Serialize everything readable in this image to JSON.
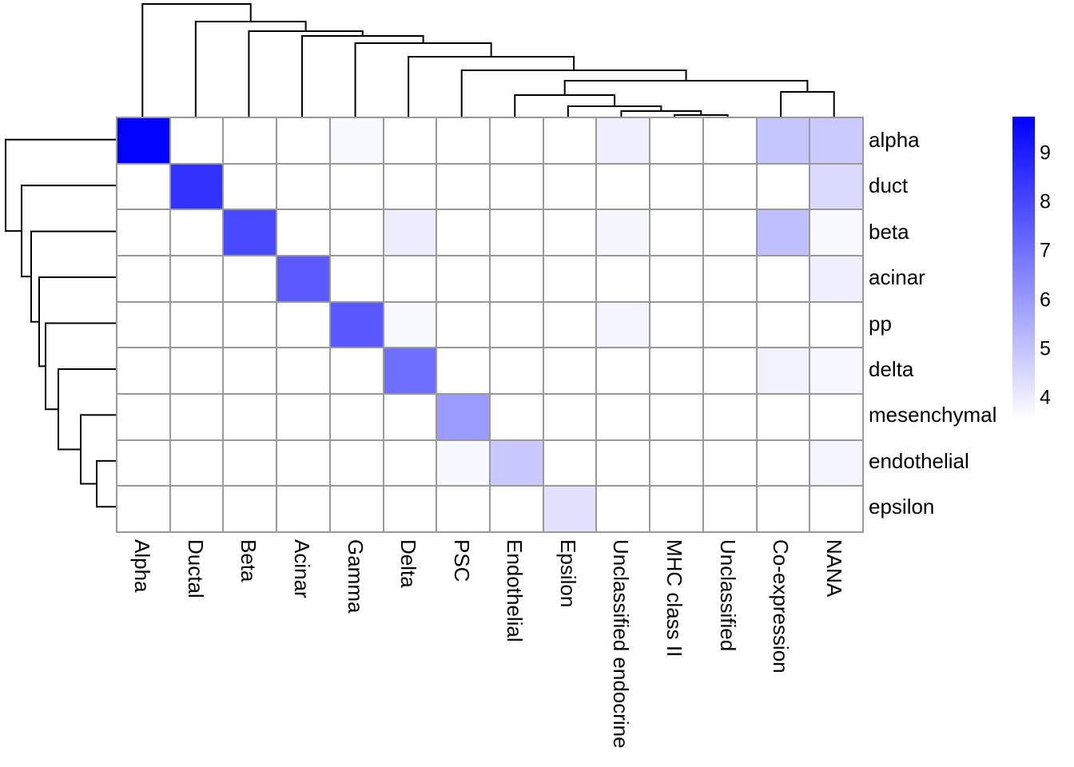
{
  "chart_data": {
    "type": "heatmap",
    "title": "",
    "rows": [
      "alpha",
      "duct",
      "beta",
      "acinar",
      "pp",
      "delta",
      "mesenchymal",
      "endothelial",
      "epsilon"
    ],
    "columns": [
      "Alpha",
      "Ductal",
      "Beta",
      "Acinar",
      "Gamma",
      "Delta",
      "PSC",
      "Endothelial",
      "Epsilon",
      "Unclassified endocrine",
      "MHC class II",
      "Unclassified",
      "Co-expression",
      "NANA"
    ],
    "values": [
      [
        9.72,
        3.53,
        3.53,
        3.53,
        3.7,
        3.53,
        3.53,
        3.53,
        3.53,
        3.92,
        3.53,
        3.53,
        4.92,
        4.83
      ],
      [
        3.53,
        8.53,
        3.53,
        3.53,
        3.53,
        3.53,
        3.53,
        3.53,
        3.53,
        3.53,
        3.53,
        3.53,
        3.53,
        4.43
      ],
      [
        3.53,
        3.53,
        7.98,
        3.53,
        3.53,
        3.97,
        3.53,
        3.53,
        3.53,
        3.75,
        3.53,
        3.53,
        5.09,
        3.71
      ],
      [
        3.53,
        3.53,
        3.53,
        7.55,
        3.53,
        3.53,
        3.53,
        3.53,
        3.53,
        3.53,
        3.53,
        3.53,
        3.53,
        3.92
      ],
      [
        3.53,
        3.53,
        3.53,
        3.53,
        7.58,
        3.7,
        3.53,
        3.53,
        3.53,
        3.8,
        3.53,
        3.53,
        3.53,
        3.53
      ],
      [
        3.53,
        3.53,
        3.53,
        3.53,
        3.53,
        7.04,
        3.53,
        3.53,
        3.53,
        3.53,
        3.53,
        3.53,
        3.85,
        3.73
      ],
      [
        3.53,
        3.53,
        3.53,
        3.53,
        3.53,
        3.53,
        5.97,
        3.53,
        3.53,
        3.53,
        3.53,
        3.53,
        3.53,
        3.53
      ],
      [
        3.53,
        3.53,
        3.53,
        3.53,
        3.53,
        3.53,
        3.73,
        4.85,
        3.53,
        3.53,
        3.53,
        3.53,
        3.53,
        3.8
      ],
      [
        3.53,
        3.53,
        3.53,
        3.53,
        3.53,
        3.53,
        3.53,
        3.53,
        4.24,
        3.53,
        3.53,
        3.53,
        3.53,
        3.53
      ]
    ],
    "vmin": 3.53,
    "vmax": 9.75,
    "color_low": "#FFFFFF",
    "color_high": "#0000FF",
    "grid_color": "#999999",
    "dendrogram_color": "#000000",
    "legend": {
      "ticks": [
        9,
        8,
        7,
        6,
        5,
        4
      ]
    },
    "col_dendrogram": [
      [
        10,
        11,
        2
      ],
      [
        9,
        "m0",
        7
      ],
      [
        8,
        "m1",
        13
      ],
      [
        7,
        "m2",
        27
      ],
      [
        12,
        13,
        31
      ],
      [
        "m3",
        "m4",
        45
      ],
      [
        6,
        "m5",
        58
      ],
      [
        5,
        "m6",
        75
      ],
      [
        4,
        "m7",
        92
      ],
      [
        3,
        "m8",
        101
      ],
      [
        2,
        "m9",
        107
      ],
      [
        1,
        "m10",
        119
      ],
      [
        0,
        "m11",
        141
      ]
    ],
    "row_dendrogram": [
      [
        7,
        8,
        24
      ],
      [
        6,
        "m0",
        44
      ],
      [
        5,
        "m1",
        72
      ],
      [
        4,
        "m2",
        88
      ],
      [
        3,
        "m3",
        96
      ],
      [
        2,
        "m4",
        106
      ],
      [
        1,
        "m5",
        118
      ],
      [
        0,
        "m6",
        138
      ]
    ]
  }
}
